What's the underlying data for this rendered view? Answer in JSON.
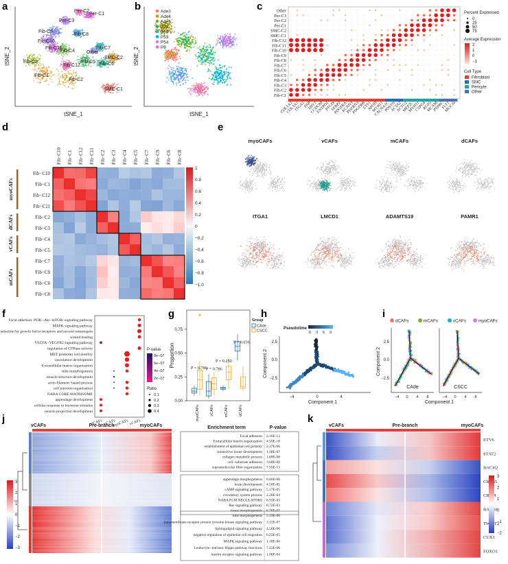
{
  "panels": {
    "a": {
      "label": "a",
      "xlabel": "tSNE_1",
      "ylabel": "tSNE_2",
      "clusters": [
        "Fib-C1",
        "Fib-C2",
        "Fib-C3",
        "Fib-C4",
        "Fib-C5",
        "Fib-C6",
        "Fib-C7",
        "Fib-C8",
        "Fib-C9",
        "Fib-C10",
        "Fib-C11",
        "Fib-C12",
        "SMC-C1",
        "SMC-C2",
        "Per-C1",
        "Per-C2",
        "Per-C3",
        "Other"
      ]
    },
    "b": {
      "label": "b",
      "xlabel": "tSNE_1",
      "ylabel": "tSNE_2",
      "legend": [
        "Ade3",
        "Ade4",
        "Ade5",
        "P71",
        "P88",
        "P53",
        "P54",
        "P8"
      ],
      "colors": [
        "#f8766d",
        "#cd9600",
        "#7cae00",
        "#00be67",
        "#00bfc4",
        "#00a9ff",
        "#c77cff",
        "#ff61cc"
      ]
    },
    "c": {
      "label": "c",
      "rows": [
        "Other",
        "Per-C3",
        "Per-C2",
        "Per-C1",
        "SMC-C2",
        "SMC-C1",
        "Fib-C12",
        "Fib-C11",
        "Fib-C10",
        "Fib-C9",
        "Fib-C8",
        "Fib-C7",
        "Fib-C6",
        "Fib-C5",
        "Fib-C4",
        "Fib-C3",
        "Fib-C2",
        "Fib-C1"
      ],
      "genes": [
        "COL1A2",
        "COL1A1",
        "ITGA1",
        "FAP",
        "THY1",
        "CCDC80",
        "ENTPD1",
        "PTGIS",
        "SFRP2",
        "PDGFRA",
        "KCNN3",
        "PDZRN3",
        "PDGFRB",
        "ETS1",
        "APOD",
        "MYH11",
        "CACNA1C",
        "POSTN",
        "ACTA2",
        "ACTG2",
        "MEF2C",
        "MYH11",
        "CSPG4",
        "RGS5",
        "MCAM",
        "PTPRC",
        "FLT1",
        "MUC16"
      ],
      "legend": {
        "pct_title": "Percent Expressed",
        "pct_values": [
          "0",
          "25",
          "50",
          "75"
        ],
        "avg_title": "Average Expression",
        "avg_ticks": [
          "2",
          "1",
          "0",
          "−1"
        ],
        "type_title": "Cell Type",
        "types": [
          "Fibroblast",
          "SMC",
          "Pericyte",
          "Other"
        ],
        "type_colors": [
          "#e63d2e",
          "#1f6fb2",
          "#23a3a0",
          "#4d6faf"
        ]
      }
    },
    "d": {
      "label": "d",
      "order": [
        "Fib−C10",
        "Fib−C1",
        "Fib−C12",
        "Fib−C11",
        "Fib−C2",
        "Fib−C3",
        "Fib−C4",
        "Fib−C5",
        "Fib−C7",
        "Fib−C9",
        "Fib−C6",
        "Fib−C8"
      ],
      "groups": [
        "myoCAFs",
        "dCAFs",
        "vCAFs",
        "mCAFs"
      ],
      "scale": [
        "1",
        "0.8",
        "0.6",
        "0.4",
        "0.2",
        "0",
        "−0.2",
        "−0.4",
        "−0.6",
        "−0.8",
        "−1.0"
      ]
    },
    "e": {
      "label": "e",
      "titles_top": [
        "myoCAFs",
        "vCAFs",
        "mCAFs",
        "dCAFs"
      ],
      "titles_bottom": [
        "ITGA1",
        "LMCD1",
        "ADAMTS19",
        "PAMR1"
      ]
    },
    "f": {
      "label": "f",
      "terms": [
        "Focal adhesion: PI3K−Akt−mTOR−signaling pathway",
        "MAPK signaling pathway",
        "Diseases of signal transduction by growth factor receptors and second messengers",
        "wound healing",
        "VEGFA−VEGFR2 signaling pathway",
        "regulation of GTPase activity",
        "MET promotes cell motility",
        "vasculature development",
        "Extracellular matrix organization",
        "tube morphogenesis",
        "muscle structure development",
        "actin filament−based process",
        "cell junction organization",
        "NABA CORE MATRISOME",
        "appendage development",
        "cellular response to hormone stimulus",
        "neuron projection development"
      ],
      "groups": [
        "dCAFs",
        "mCAFs",
        "myoCAFs",
        "vCAFs"
      ],
      "pvalue_title": "P-value",
      "pvalue_ticks": [
        "8e−07",
        "6e−07",
        "4e−07",
        "2e−07"
      ],
      "ratio_title": "Ratio",
      "ratio_ticks": [
        "0.1",
        "0.2",
        "0.3",
        "0.4"
      ]
    },
    "g": {
      "label": "g",
      "ylabel": "Proportion",
      "yticks": [
        "0.00",
        "0.25",
        "0.50",
        "0.75"
      ],
      "categories": [
        "myoCAFs",
        "vCAFs",
        "mCAFs",
        "dCAFs"
      ],
      "groups_title": "Group",
      "groups": [
        "CAde",
        "CSCC"
      ],
      "group_colors": [
        "#3a80c0",
        "#f2b233"
      ],
      "pvalues": [
        "P = 0.786",
        "P = 0.786",
        "P = 0.250",
        "P = 0.036"
      ]
    },
    "h": {
      "label": "h",
      "legend_title": "Pseudotime",
      "legend_ticks": [
        "0",
        "3",
        "6",
        "9"
      ],
      "xlabel": "Component 1",
      "ylabel": "Component 2",
      "xticks": [
        "−4",
        "0",
        "4"
      ],
      "yticks": [
        "2.5",
        "0.0",
        "−2.5"
      ]
    },
    "i": {
      "label": "i",
      "legend": [
        "dCAFs",
        "mCAFs",
        "vCAFs",
        "myoCAFs"
      ],
      "legend_colors": [
        "#f0776c",
        "#7ab22d",
        "#18b5c0",
        "#c97ef5"
      ],
      "sub": [
        "CAde",
        "CSCC"
      ],
      "xlabel": "Component 1",
      "ylabel": "Component 2",
      "xticks": [
        "−4",
        "0",
        "4",
        "8",
        "−4",
        "0",
        "4",
        "8"
      ],
      "yticks": [
        "2.5",
        "0.0",
        "−2.5"
      ]
    },
    "j": {
      "label": "j",
      "headers": [
        "vCAFs",
        "Pre-branch",
        "myoCAFs"
      ],
      "scale": [
        "3",
        "2",
        "1",
        "0",
        "−1",
        "−2",
        "−3"
      ],
      "col_term": "Enrichment term",
      "col_p": "P-value",
      "blocks": [
        {
          "color": "#5b7fc6",
          "rows": [
            {
              "term": "Focal adhesion",
              "p": "2.16E-13"
            },
            {
              "term": "Extracellular matrix organization",
              "p": "4.55E-18"
            },
            {
              "term": "establishment of epithelial cell polarity",
              "p": "2.37E-06"
            },
            {
              "term": "connective tissue development",
              "p": "1.48E-07"
            },
            {
              "term": "collagen metabolic process",
              "p": "1.69E-08"
            },
            {
              "term": "cell−substrate adhesion",
              "p": "3.60E-08"
            },
            {
              "term": "supramolecular fiber organization",
              "p": "7.55E-13"
            }
          ]
        },
        {
          "color": "#8b8b8b",
          "rows": [
            {
              "term": "appendage morphogenesis",
              "p": "6.46E-06"
            },
            {
              "term": "brain development",
              "p": "4.50E-05"
            },
            {
              "term": "cAMP signaling pathway",
              "p": "5.17E-05"
            },
            {
              "term": "circulatory system process",
              "p": "2.20E-04"
            },
            {
              "term": "NABA ECM REGULATORS",
              "p": "8.93E-03"
            },
            {
              "term": "Ras signaling pathway",
              "p": "8.72E-03"
            },
            {
              "term": "tissue morphogenesis",
              "p": "6.76E-07"
            }
          ]
        },
        {
          "color": "#e0392e",
          "rows": [
            {
              "term": "tube morphogenesis",
              "p": "5.19E-06"
            },
            {
              "term": "transmembrane receptor protein tyrosine kinase signaling pathway",
              "p": "3.12E-07"
            },
            {
              "term": "Sphingolipid signaling pathway",
              "p": "4.56E-06"
            },
            {
              "term": "negative regulation of epithelial cell migration",
              "p": "6.25E-05"
            },
            {
              "term": "MAPK signaling pathway",
              "p": "1.18E-06"
            },
            {
              "term": "Leukocyte−intrinsic Hippo pathway functions",
              "p": "7.43E-06"
            },
            {
              "term": "insulin receptor signaling pathway",
              "p": "1.06E-04"
            }
          ]
        }
      ]
    },
    "k": {
      "label": "k",
      "headers": [
        "vCAFs",
        "Pre-branch",
        "myoCAFs"
      ],
      "genes": [
        "ETV6",
        "STAT2",
        "BACH2",
        "CREB5",
        "CREM",
        "BACH1",
        "TWIST2",
        "CUX1",
        "FOXO1"
      ],
      "scale": [
        "3",
        "2",
        "1",
        "0",
        "−1",
        "−2"
      ]
    }
  }
}
